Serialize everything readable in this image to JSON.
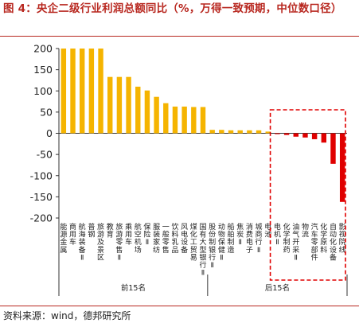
{
  "figure": {
    "title": "图 4：央企二级行业利润总额同比（%，万得一致预期，中位数口径）",
    "source": "资料来源：wind，德邦研究所",
    "group_labels": [
      "前15名",
      "后15名"
    ]
  },
  "colors": {
    "positive": "#f5b400",
    "negative": "#e00000",
    "box": "#e00000",
    "title": "#b8271f"
  },
  "chart_data": {
    "type": "bar",
    "title": "",
    "xlabel": "",
    "ylabel": "",
    "ylim": [
      -200,
      200
    ],
    "yticks": [
      200,
      150,
      100,
      50,
      0,
      -50,
      -100,
      -150,
      -200
    ],
    "categories": [
      "能源金属",
      "商用车",
      "航海装备Ⅱ",
      "普钢",
      "旅游及景区",
      "教育",
      "旅游零售Ⅱ",
      "乘用车",
      "航空机场",
      "保险Ⅱ",
      "服装家纺",
      "一般零售",
      "饮料乳品",
      "风电设备",
      "煤化工贸易",
      "国有大型银行Ⅱ",
      "股份制银行Ⅱ",
      "动物保健Ⅱ",
      "船舶制造",
      "焦炭Ⅱ",
      "消费电子",
      "城商行Ⅱ",
      "电池",
      "电机Ⅱ",
      "化学制药",
      "油气开采Ⅱ",
      "物流",
      "汽车零部件",
      "化学原料",
      "自动化设备",
      "影视院线"
    ],
    "values": [
      200,
      200,
      200,
      200,
      200,
      133,
      133,
      133,
      110,
      101,
      86,
      71,
      63,
      63,
      62,
      62,
      8,
      8,
      7,
      7,
      7,
      7,
      4,
      -2,
      -4,
      -8,
      -10,
      -14,
      -22,
      -72,
      -162
    ],
    "groups": [
      {
        "label": "前15名",
        "from": 0,
        "to": 15
      },
      {
        "label": "后15名",
        "from": 16,
        "to": 30
      }
    ],
    "highlight_box": {
      "from": 23,
      "to": 30
    }
  }
}
